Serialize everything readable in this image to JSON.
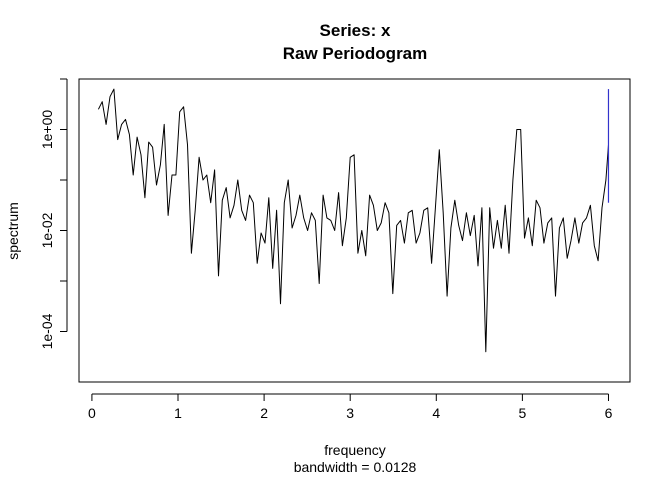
{
  "chart_data": {
    "type": "line",
    "title": "Series: x",
    "subtitle": "Raw Periodogram",
    "xlabel": "frequency",
    "xsub": "bandwidth = 0.0128",
    "ylabel": "spectrum",
    "xlim": [
      -0.15,
      6.25
    ],
    "ylim_log10": [
      -5.0,
      1.0
    ],
    "log_y": true,
    "grid": false,
    "x_ticks": [
      0,
      1,
      2,
      3,
      4,
      5,
      6
    ],
    "x_tick_labels": [
      "0",
      "1",
      "2",
      "3",
      "4",
      "5",
      "6"
    ],
    "y_ticks_log10": [
      -4,
      -3,
      -2,
      -1,
      0,
      1
    ],
    "y_tick_labels": [
      "1e-04",
      "",
      "1e-02",
      "",
      "1e+00",
      ""
    ],
    "series": [
      {
        "color": "#000000",
        "x": [
          0.075,
          0.12,
          0.165,
          0.21,
          0.255,
          0.3,
          0.345,
          0.39,
          0.435,
          0.48,
          0.525,
          0.57,
          0.615,
          0.66,
          0.705,
          0.75,
          0.795,
          0.84,
          0.885,
          0.93,
          0.975,
          1.02,
          1.065,
          1.11,
          1.155,
          1.2,
          1.245,
          1.29,
          1.335,
          1.38,
          1.425,
          1.47,
          1.515,
          1.56,
          1.605,
          1.65,
          1.695,
          1.74,
          1.785,
          1.83,
          1.875,
          1.92,
          1.965,
          2.01,
          2.055,
          2.1,
          2.145,
          2.19,
          2.235,
          2.28,
          2.325,
          2.37,
          2.415,
          2.46,
          2.505,
          2.55,
          2.595,
          2.64,
          2.685,
          2.73,
          2.775,
          2.82,
          2.865,
          2.91,
          2.955,
          3.0,
          3.045,
          3.09,
          3.135,
          3.18,
          3.225,
          3.27,
          3.315,
          3.36,
          3.405,
          3.45,
          3.495,
          3.54,
          3.585,
          3.63,
          3.675,
          3.72,
          3.765,
          3.81,
          3.855,
          3.9,
          3.945,
          3.99,
          4.035,
          4.08,
          4.125,
          4.17,
          4.215,
          4.26,
          4.305,
          4.35,
          4.395,
          4.44,
          4.485,
          4.53,
          4.575,
          4.62,
          4.665,
          4.71,
          4.755,
          4.8,
          4.845,
          4.89,
          4.935,
          4.98,
          5.025,
          5.07,
          5.115,
          5.16,
          5.205,
          5.25,
          5.295,
          5.34,
          5.385,
          5.43,
          5.475,
          5.52,
          5.565,
          5.61,
          5.655,
          5.7,
          5.745,
          5.79,
          5.835,
          5.88,
          5.925,
          5.97,
          6.0
        ],
        "y_log10": [
          0.4,
          0.55,
          0.1,
          0.65,
          0.8,
          -0.2,
          0.1,
          0.2,
          -0.1,
          -0.9,
          -0.15,
          -0.5,
          -1.35,
          -0.25,
          -0.35,
          -1.1,
          -0.7,
          0.1,
          -1.7,
          -0.9,
          -0.9,
          0.35,
          0.45,
          -0.3,
          -2.45,
          -1.6,
          -0.55,
          -1.0,
          -0.9,
          -1.45,
          -0.8,
          -2.9,
          -1.4,
          -1.15,
          -1.75,
          -1.5,
          -1.0,
          -1.6,
          -1.8,
          -1.3,
          -1.45,
          -2.65,
          -2.05,
          -2.25,
          -1.35,
          -2.75,
          -1.6,
          -3.45,
          -1.45,
          -1.0,
          -1.95,
          -1.7,
          -1.3,
          -1.75,
          -2.0,
          -1.65,
          -1.8,
          -3.05,
          -1.3,
          -1.75,
          -1.8,
          -2.0,
          -1.25,
          -2.3,
          -1.75,
          -0.55,
          -0.5,
          -2.45,
          -2.0,
          -2.5,
          -1.3,
          -1.5,
          -2.0,
          -1.85,
          -1.45,
          -1.65,
          -3.25,
          -1.9,
          -1.8,
          -2.25,
          -1.65,
          -1.6,
          -2.25,
          -2.05,
          -1.6,
          -1.55,
          -2.65,
          -1.55,
          -0.4,
          -1.65,
          -3.3,
          -1.95,
          -1.4,
          -1.9,
          -2.2,
          -1.65,
          -2.1,
          -1.7,
          -2.7,
          -1.55,
          -4.4,
          -1.55,
          -2.35,
          -1.8,
          -2.35,
          -1.5,
          -2.45,
          -1.0,
          0.0,
          0.0,
          -2.15,
          -1.75,
          -2.3,
          -1.4,
          -1.55,
          -2.25,
          -1.85,
          -1.75,
          -3.3,
          -1.95,
          -1.75,
          -2.55,
          -2.2,
          -1.75,
          -2.25,
          -1.85,
          -1.75,
          -1.5,
          -2.3,
          -2.6,
          -1.55,
          -1.0,
          -0.3
        ]
      }
    ],
    "ci_bar": {
      "color": "#3333cc",
      "x": 6.0,
      "y_log10_range": [
        -1.45,
        0.8
      ]
    }
  }
}
